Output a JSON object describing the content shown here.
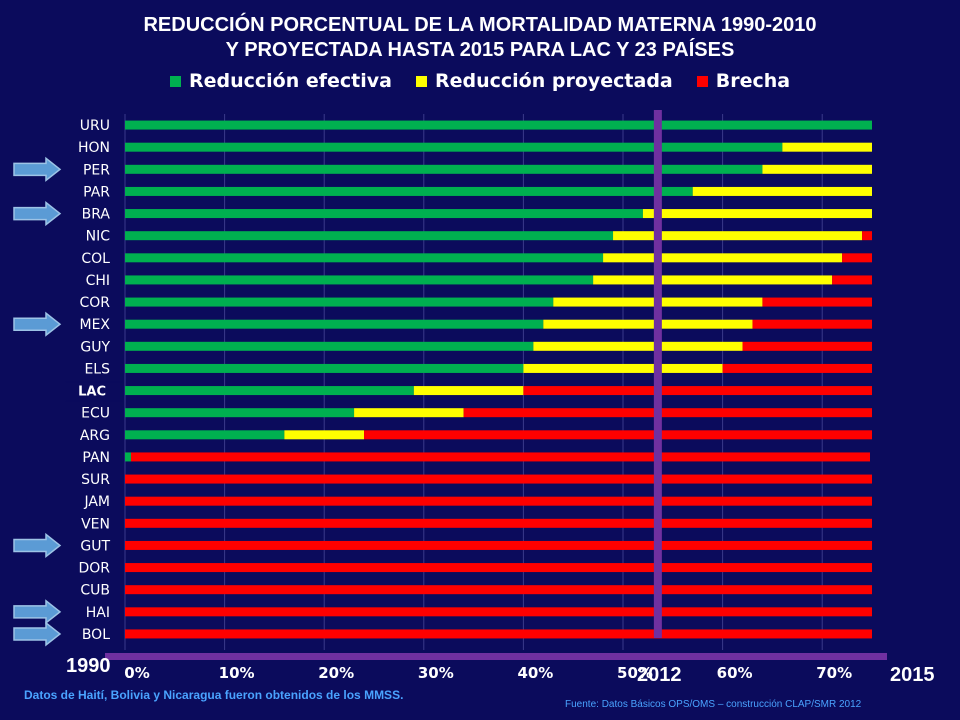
{
  "page": {
    "title_line1": "REDUCCIÓN PORCENTUAL DE LA MORTALIDAD MATERNA 1990-2010",
    "title_line2": "Y PROYECTADA HASTA 2015 PARA LAC Y 23 PAÍSES",
    "year_start": "1990",
    "year_mid": "2012",
    "year_end": "2015",
    "note": "Datos de Haití,  Bolivia y Nicaragua fueron obtenidos de los MMSS.",
    "source": "Fuente: Datos Básicos OPS/OMS – construcción CLAP/SMR 2012"
  },
  "legend": [
    {
      "label": "Reducción efectiva",
      "color": "#00b050"
    },
    {
      "label": "Reducción proyectada",
      "color": "#ffff00"
    },
    {
      "label": "Brecha",
      "color": "#ff0000"
    }
  ],
  "chart_data": {
    "type": "bar",
    "orientation": "horizontal",
    "stacked": true,
    "title": "REDUCCIÓN PORCENTUAL DE LA MORTALIDAD MATERNA 1990-2010 Y PROYECTADA HASTA 2015 PARA LAC Y 23 PAÍSES",
    "xlim": [
      0,
      0.75
    ],
    "xticks": [
      "0%",
      "10%",
      "20%",
      "30%",
      "40%",
      "50%",
      "60%",
      "70%"
    ],
    "grid": true,
    "legend_position": "top",
    "categories": [
      "URU",
      "HON",
      "PER",
      "PAR",
      "BRA",
      "NIC",
      "COL",
      "CHI",
      "COR",
      "MEX",
      "GUY",
      "ELS",
      "LAC",
      "ECU",
      "ARG",
      "PAN",
      "SUR",
      "JAM",
      "VEN",
      "GUT",
      "DOR",
      "CUB",
      "HAI",
      "BOL"
    ],
    "highlighted_categories": [
      "PER",
      "BRA",
      "MEX",
      "GUT",
      "HAI",
      "BOL"
    ],
    "series": [
      {
        "name": "Reducción efectiva",
        "color": "#00b050",
        "values": [
          0.75,
          0.66,
          0.64,
          0.57,
          0.52,
          0.49,
          0.48,
          0.47,
          0.43,
          0.42,
          0.41,
          0.4,
          0.29,
          0.23,
          0.16,
          0.006,
          0,
          0,
          0,
          0,
          0,
          0,
          0,
          0
        ]
      },
      {
        "name": "Reducción proyectada",
        "color": "#ffff00",
        "values": [
          0,
          0.09,
          0.11,
          0.18,
          0.23,
          0.25,
          0.24,
          0.24,
          0.21,
          0.21,
          0.21,
          0.2,
          0.11,
          0.11,
          0.08,
          0,
          0,
          0,
          0,
          0,
          0,
          0,
          0,
          0
        ]
      },
      {
        "name": "Brecha",
        "color": "#ff0000",
        "values": [
          0,
          0,
          0,
          0,
          0,
          0.01,
          0.03,
          0.04,
          0.11,
          0.12,
          0.13,
          0.15,
          0.35,
          0.41,
          0.51,
          0.742,
          0.75,
          0.75,
          0.75,
          0.75,
          0.75,
          0.75,
          0.75,
          0.75
        ]
      }
    ],
    "reference_line": {
      "label": "2012",
      "value": 0.535,
      "color": "#7030a0"
    }
  }
}
